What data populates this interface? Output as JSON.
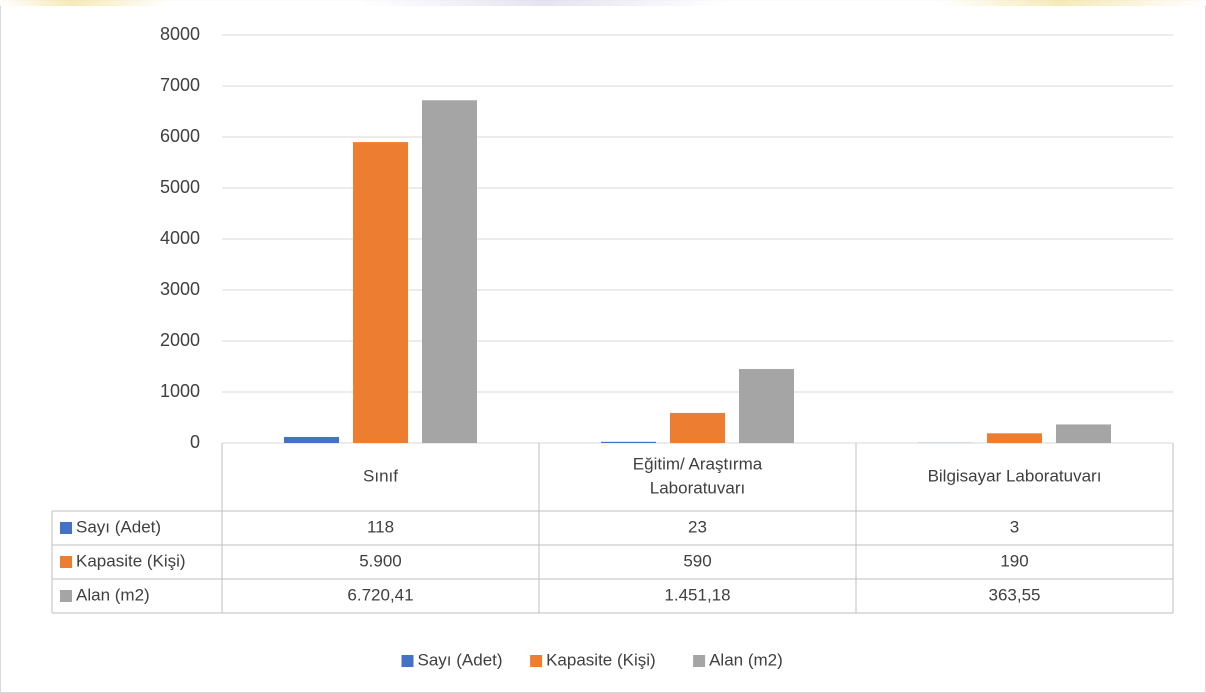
{
  "chart_data": {
    "type": "bar",
    "categories": [
      "Sınıf",
      "Eğitim/ Araştırma Laboratuvarı",
      "Bilgisayar Laboratuvarı"
    ],
    "category_lines": [
      [
        "Sınıf"
      ],
      [
        "Eğitim/ Araştırma",
        "Laboratuvarı"
      ],
      [
        "Bilgisayar Laboratuvarı"
      ]
    ],
    "series": [
      {
        "name": "Sayı (Adet)",
        "values": [
          118,
          23,
          3
        ],
        "labels": [
          "118",
          "23",
          "3"
        ],
        "color": "#4472c4"
      },
      {
        "name": "Kapasite (Kişi)",
        "values": [
          5900,
          590,
          190
        ],
        "labels": [
          "5.900",
          "590",
          "190"
        ],
        "color": "#ed7d31"
      },
      {
        "name": "Alan (m2)",
        "values": [
          6720.41,
          1451.18,
          363.55
        ],
        "labels": [
          "6.720,41",
          "1.451,18",
          "363,55"
        ],
        "color": "#a5a5a5"
      }
    ],
    "ylim": [
      0,
      8000
    ],
    "yticks": [
      0,
      1000,
      2000,
      3000,
      4000,
      5000,
      6000,
      7000,
      8000
    ],
    "grid": true,
    "legend": "bottom",
    "data_table": true,
    "title": "",
    "xlabel": "",
    "ylabel": ""
  }
}
